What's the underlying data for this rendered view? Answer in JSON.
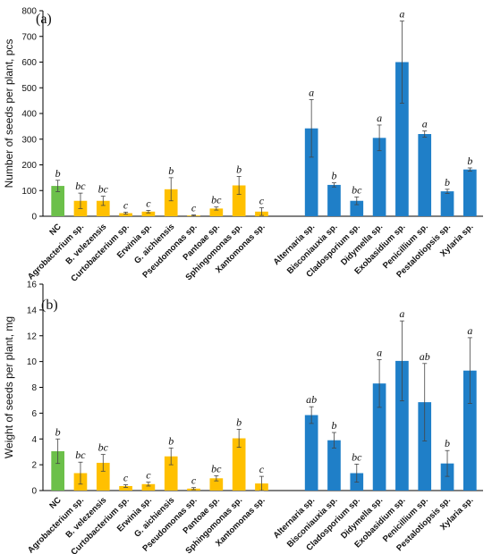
{
  "colors": {
    "control": "#6cc04a",
    "bacteria": "#ffc000",
    "fungi": "#1f7fc8",
    "axis": "#000000",
    "error": "#444444"
  },
  "chart_data": [
    {
      "type": "bar",
      "title": "(a)",
      "ylabel": "Number of seeds per plant, pcs",
      "ylim": [
        0,
        800
      ],
      "yticks": [
        0,
        100,
        200,
        300,
        400,
        500,
        600,
        700,
        800
      ],
      "grid": false,
      "categories": [
        "NC",
        "Agrobacterium sp.",
        "B. velezensis",
        "Curtobacterium sp.",
        "Erwinia sp.",
        "G. aichiensis",
        "Pseudomonas sp.",
        "Pantoae sp.",
        "Sphingomonas sp.",
        "Xantomonas sp.",
        "Alternaria sp.",
        "Bisconiauxia sp.",
        "Cladosporium sp.",
        "Didymella sp.",
        "Exobasidium sp.",
        "Penicillium sp.",
        "Pestalotiopsis sp.",
        "Xylaria sp."
      ],
      "groups": [
        "control",
        "bacteria",
        "bacteria",
        "bacteria",
        "bacteria",
        "bacteria",
        "bacteria",
        "bacteria",
        "bacteria",
        "bacteria",
        "fungi",
        "fungi",
        "fungi",
        "fungi",
        "fungi",
        "fungi",
        "fungi",
        "fungi"
      ],
      "values": [
        118,
        60,
        60,
        12,
        18,
        105,
        3,
        30,
        120,
        18,
        342,
        122,
        60,
        305,
        600,
        320,
        97,
        182
      ],
      "errors": [
        22,
        30,
        18,
        4,
        5,
        45,
        2,
        6,
        35,
        15,
        112,
        8,
        15,
        50,
        160,
        12,
        8,
        6
      ],
      "letters": [
        "b",
        "bc",
        "bc",
        "c",
        "c",
        "b",
        "c",
        "bc",
        "b",
        "c",
        "a",
        "b",
        "bc",
        "a",
        "a",
        "a",
        "b",
        "b"
      ]
    },
    {
      "type": "bar",
      "title": "(b)",
      "ylabel": "Weight of seeds per plant, mg",
      "ylim": [
        0,
        16
      ],
      "yticks": [
        0,
        2,
        4,
        6,
        8,
        10,
        12,
        14,
        16
      ],
      "grid": false,
      "categories": [
        "NC",
        "Agrobacterium sp.",
        "B. velezensis",
        "Curtobacterium sp.",
        "Erwinia sp.",
        "G. aichiensis",
        "Pseudomonas sp.",
        "Pantoae sp.",
        "Sphingomonas sp.",
        "Xantomonas sp.",
        "Alternaria sp.",
        "Bisconiauxia sp.",
        "Cladosporium sp.",
        "Didymella sp.",
        "Exobasidium sp.",
        "Penicillium sp.",
        "Pestalotiopsis sp.",
        "Xylaria sp."
      ],
      "groups": [
        "control",
        "bacteria",
        "bacteria",
        "bacteria",
        "bacteria",
        "bacteria",
        "bacteria",
        "bacteria",
        "bacteria",
        "bacteria",
        "fungi",
        "fungi",
        "fungi",
        "fungi",
        "fungi",
        "fungi",
        "fungi",
        "fungi"
      ],
      "values": [
        3.05,
        1.35,
        2.15,
        0.35,
        0.5,
        2.65,
        0.15,
        0.95,
        4.05,
        0.55,
        5.85,
        3.9,
        1.35,
        8.3,
        10.05,
        6.85,
        2.1,
        9.3
      ],
      "errors": [
        0.95,
        0.85,
        0.65,
        0.1,
        0.15,
        0.65,
        0.08,
        0.2,
        0.7,
        0.55,
        0.65,
        0.6,
        0.7,
        1.85,
        3.1,
        3.0,
        1.0,
        2.55
      ],
      "letters": [
        "b",
        "bc",
        "bc",
        "c",
        "c",
        "b",
        "c",
        "bc",
        "b",
        "c",
        "ab",
        "b",
        "bc",
        "a",
        "a",
        "ab",
        "b",
        "a"
      ]
    }
  ]
}
